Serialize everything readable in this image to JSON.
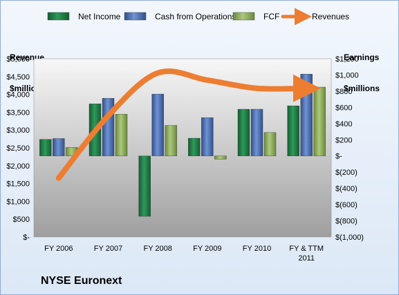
{
  "chart_data": {
    "type": "bar",
    "title": "",
    "company": "NYSE Euronext",
    "categories": [
      "FY 2006",
      "FY 2007",
      "FY 2008",
      "FY 2009",
      "FY 2010",
      "FY & TTM 2011"
    ],
    "category_lines": [
      [
        "FY 2006"
      ],
      [
        "FY 2007"
      ],
      [
        "FY 2008"
      ],
      [
        "FY 2009"
      ],
      [
        "FY 2010"
      ],
      [
        "FY & TTM",
        "2011"
      ]
    ],
    "y_left": {
      "label_line1": "Revenue",
      "label_line2": "$millions",
      "min": 0,
      "max": 5000,
      "ticks": [
        0,
        500,
        1000,
        1500,
        2000,
        2500,
        3000,
        3500,
        4000,
        4500,
        5000
      ],
      "tick_labels": [
        "$-",
        "$500",
        "$1,000",
        "$1,500",
        "$2,000",
        "$2,500",
        "$3,000",
        "$3,500",
        "$4,000",
        "$4,500",
        "$5,000"
      ]
    },
    "y_right": {
      "label_line1": "Earnings",
      "label_line2": "$millions",
      "min": -1000,
      "max": 1200,
      "ticks": [
        -1000,
        -800,
        -600,
        -400,
        -200,
        0,
        200,
        400,
        600,
        800,
        1000,
        1200
      ],
      "tick_labels": [
        "$(1,000)",
        "$(800)",
        "$(600)",
        "$(400)",
        "$(200)",
        "$-",
        "$200",
        "$400",
        "$600",
        "$800",
        "$1,000",
        "$1,200"
      ]
    },
    "series": [
      {
        "name": "Net Income",
        "axis": "right",
        "kind": "bar",
        "color": "#1e7b45",
        "values": [
          205,
          643,
          -745,
          219,
          577,
          619
        ]
      },
      {
        "name": "Cash from Operations",
        "axis": "right",
        "kind": "bar",
        "color": "#4a6fb5",
        "values": [
          215,
          712,
          764,
          473,
          577,
          1010
        ]
      },
      {
        "name": "FCF",
        "axis": "right",
        "kind": "bar",
        "color": "#8fae5a",
        "values": [
          105,
          515,
          377,
          -40,
          289,
          850
        ]
      },
      {
        "name": "Revenues",
        "axis": "left",
        "kind": "line",
        "color": "#ed7d31",
        "values": [
          1650,
          3400,
          4600,
          4400,
          4170,
          4170
        ]
      }
    ],
    "legend_position": "top",
    "grid": false
  }
}
